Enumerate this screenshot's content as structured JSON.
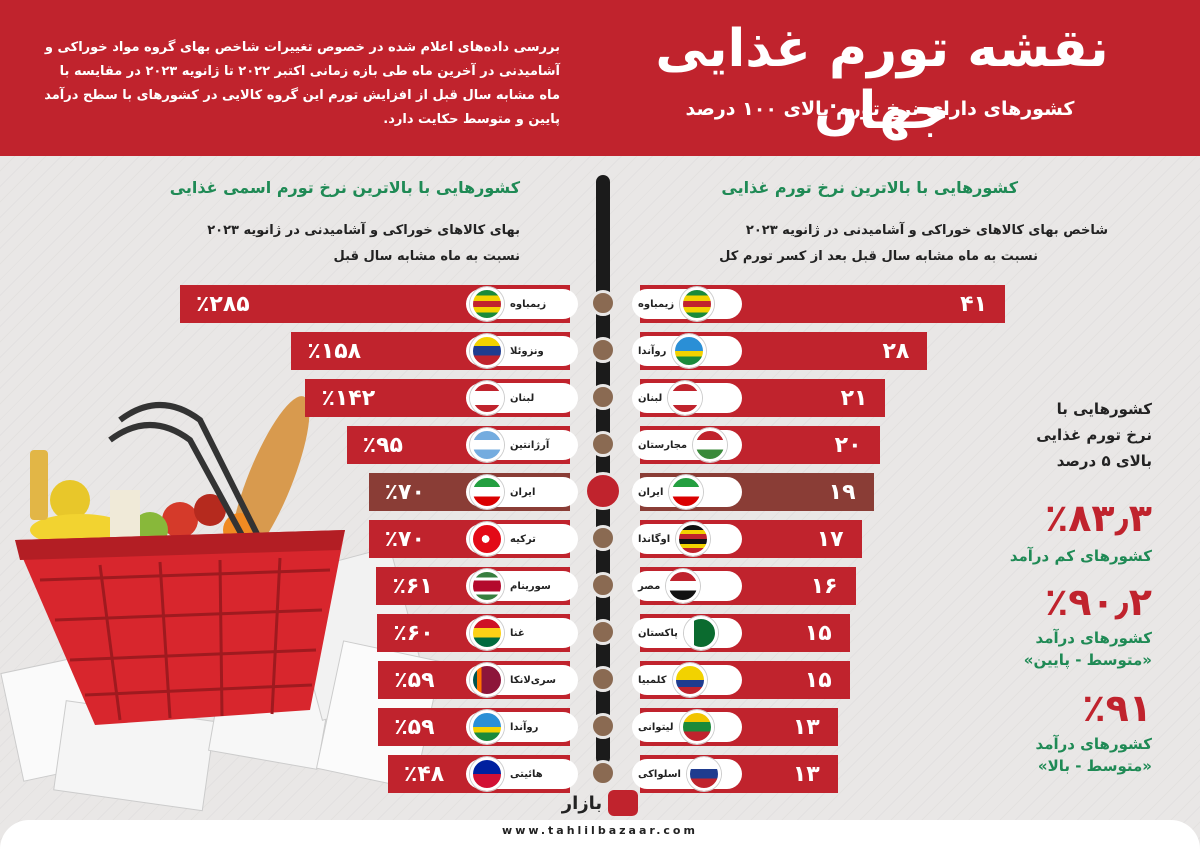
{
  "header": {
    "title": "نقشه تورم غذایی جهان",
    "subtitle": "کشورهای دارای نرخ تورم بالای ۱۰۰ درصد",
    "intro": "بررسی داده‌های اعلام شده در خصوص تغییرات شاخص بهای گروه مواد خوراکی و آشامیدنی در آخرین ماه طی بازه زمانی اکتبر ۲۰۲۲ تا ژانویه ۲۰۲۳ در مقایسه با ماه مشابه سال قبل از افزایش تورم این گروه کالایی در کشورهای با سطح درآمد پایین و متوسط حکایت دارد."
  },
  "right_section": {
    "title": "کشورهایی با بالاترین نرخ تورم غذایی",
    "desc_line1": "شاخص بهای کالاهای خوراکی و آشامیدنی در ژانویه ۲۰۲۳",
    "desc_line2": "نسبت به ماه مشابه سال قبل بعد از کسر تورم کل"
  },
  "left_section": {
    "title": "کشورهایی با بالاترین نرخ تورم اسمی غذایی",
    "desc_line1": "بهای کالاهای خوراکی و آشامیدنی در ژانویه ۲۰۲۳",
    "desc_line2": "نسبت به ماه مشابه سال قبل"
  },
  "chart_data": [
    {
      "type": "bar",
      "categories": [
        "زیمباوه",
        "روآندا",
        "لبنان",
        "مجارستان",
        "ایران",
        "اوگاندا",
        "مصر",
        "پاکستان",
        "کلمبیا",
        "لیتوانی",
        "اسلواکی"
      ],
      "values": [
        41,
        28,
        21,
        20,
        19,
        17,
        16,
        15,
        15,
        13,
        13
      ],
      "labels": [
        "۴۱",
        "۲۸",
        "۲۱",
        "۲۰",
        "۱۹",
        "۱۷",
        "۱۶",
        "۱۵",
        "۱۵",
        "۱۳",
        "۱۳"
      ],
      "title": "کشورهایی با بالاترین نرخ تورم غذایی",
      "highlight": "ایران"
    },
    {
      "type": "bar",
      "categories": [
        "زیمباوه",
        "ونزوئلا",
        "لبنان",
        "آرژانتین",
        "ایران",
        "ترکیه",
        "سورینام",
        "غنا",
        "سری‌لانکا",
        "روآندا",
        "هائیتی"
      ],
      "values": [
        285,
        158,
        142,
        95,
        70,
        70,
        61,
        60,
        59,
        59,
        48
      ],
      "labels": [
        "٪۲۸۵",
        "٪۱۵۸",
        "٪۱۴۲",
        "٪۹۵",
        "٪۷۰",
        "٪۷۰",
        "٪۶۱",
        "٪۶۰",
        "٪۵۹",
        "٪۵۹",
        "٪۴۸"
      ],
      "title": "کشورهایی با بالاترین نرخ تورم اسمی غذایی",
      "highlight": "ایران"
    }
  ],
  "side_panel": {
    "heading_l1": "کشورهایی با",
    "heading_l2": "نرخ تورم غذایی",
    "heading_l3": "بالای ۵ درصد",
    "stats": [
      {
        "value": "٪۸۳٫۳",
        "label_l1": "کشورهای کم درآمد",
        "label_l2": ""
      },
      {
        "value": "٪۹۰٫۲",
        "label_l1": "کشورهای درآمد",
        "label_l2": "«متوسط - پایین»"
      },
      {
        "value": "٪۹۱",
        "label_l1": "کشورهای درآمد",
        "label_l2": "«متوسط - بالا»"
      }
    ]
  },
  "footer": {
    "logo": "بازار",
    "url": "www.tahlilbazaar.com"
  },
  "colors": {
    "primary": "#c0232d",
    "highlight": "#8a3d36",
    "green": "#1f8a55",
    "spine": "#1b1b1b"
  }
}
